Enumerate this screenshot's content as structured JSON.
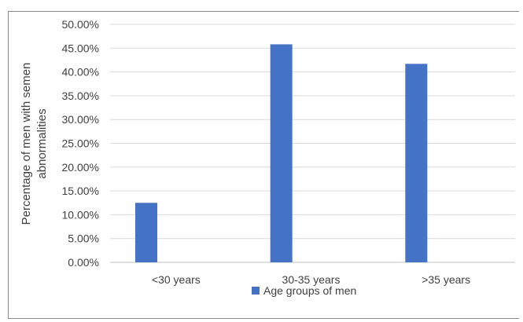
{
  "chart_data": {
    "type": "bar",
    "categories": [
      "<30 years",
      "30-35 years",
      ">35 years"
    ],
    "series": [
      {
        "name": "Age groups of men",
        "values": [
          12.5,
          45.8,
          41.7
        ]
      }
    ],
    "value_format": "percent",
    "title": "",
    "xlabel": "",
    "ylabel": "Percentage of men with semen abnormalities",
    "ylabel_lines": [
      "Percentage of men with semen",
      "abnormalities"
    ],
    "ylim": [
      0,
      50
    ],
    "ytick_step": 5,
    "yticks": [
      "0.00%",
      "5.00%",
      "10.00%",
      "15.00%",
      "20.00%",
      "25.00%",
      "30.00%",
      "35.00%",
      "40.00%",
      "45.00%",
      "50.00%"
    ],
    "grid": true,
    "legend": "bottom",
    "colors": {
      "bar": "#4472C4",
      "grid": "#d9d9d9",
      "axis": "#bfbfbf",
      "text": "#404040"
    }
  }
}
